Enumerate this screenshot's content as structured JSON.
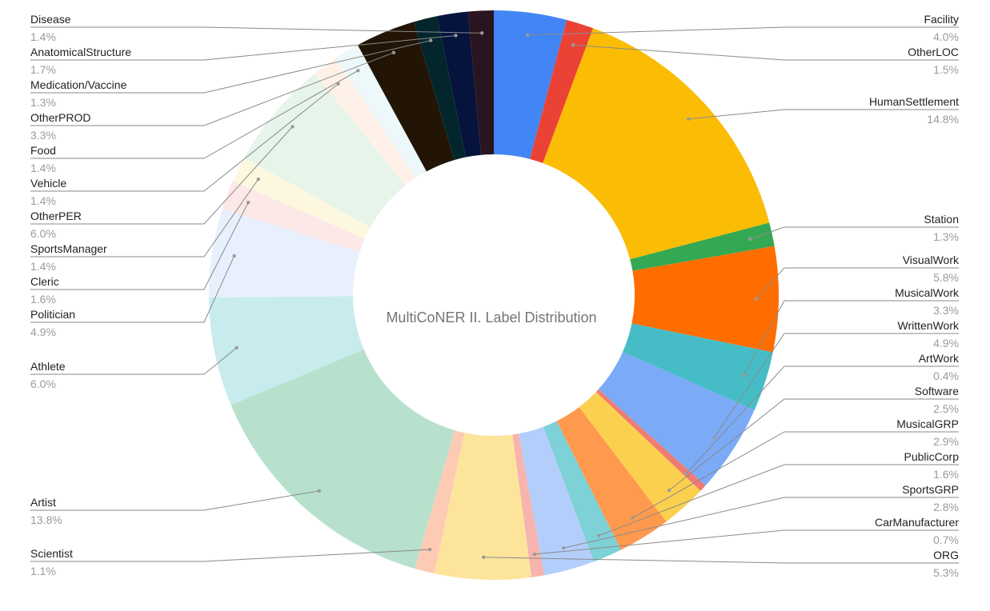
{
  "chart_data": {
    "type": "pie",
    "donut": true,
    "title": "MultiCoNER II. Label Distribution",
    "slices": [
      {
        "label": "Facility",
        "percent_label": "4.0%",
        "value": 4.0,
        "color": "#4285f4"
      },
      {
        "label": "OtherLOC",
        "percent_label": "1.5%",
        "value": 1.5,
        "color": "#ea4335"
      },
      {
        "label": "HumanSettlement",
        "percent_label": "14.8%",
        "value": 14.8,
        "color": "#fbbc04"
      },
      {
        "label": "Station",
        "percent_label": "1.3%",
        "value": 1.3,
        "color": "#34a853"
      },
      {
        "label": "VisualWork",
        "percent_label": "5.8%",
        "value": 5.8,
        "color": "#ff6d01"
      },
      {
        "label": "MusicalWork",
        "percent_label": "3.3%",
        "value": 3.3,
        "color": "#46bdc6"
      },
      {
        "label": "WrittenWork",
        "percent_label": "4.9%",
        "value": 4.9,
        "color": "#7baaf7"
      },
      {
        "label": "ArtWork",
        "percent_label": "0.4%",
        "value": 0.4,
        "color": "#f07b72"
      },
      {
        "label": "Software",
        "percent_label": "2.5%",
        "value": 2.5,
        "color": "#fcd04f"
      },
      {
        "label": "MusicalGRP",
        "percent_label": "2.9%",
        "value": 2.9,
        "color": "#ff994d"
      },
      {
        "label": "PublicCorp",
        "percent_label": "1.6%",
        "value": 1.6,
        "color": "#7ed1d7"
      },
      {
        "label": "SportsGRP",
        "percent_label": "2.8%",
        "value": 2.8,
        "color": "#b3cefb"
      },
      {
        "label": "CarManufacturer",
        "percent_label": "0.7%",
        "value": 0.7,
        "color": "#f7b4ae"
      },
      {
        "label": "ORG",
        "percent_label": "5.3%",
        "value": 5.3,
        "color": "#fde49b"
      },
      {
        "label": "Scientist",
        "percent_label": "1.1%",
        "value": 1.1,
        "color": "#fdcbb4"
      },
      {
        "label": "Artist",
        "percent_label": "13.8%",
        "value": 13.8,
        "color": "#b7e1cd"
      },
      {
        "label": "Athlete",
        "percent_label": "6.0%",
        "value": 6.0,
        "color": "#c8ebee"
      },
      {
        "label": "Politician",
        "percent_label": "4.9%",
        "value": 4.9,
        "color": "#e8f0fe"
      },
      {
        "label": "Cleric",
        "percent_label": "1.6%",
        "value": 1.6,
        "color": "#fce8e6"
      },
      {
        "label": "SportsManager",
        "percent_label": "1.4%",
        "value": 1.4,
        "color": "#fef7e0"
      },
      {
        "label": "OtherPER",
        "percent_label": "6.0%",
        "value": 6.0,
        "color": "#e6f4ea"
      },
      {
        "label": "Vehicle",
        "percent_label": "1.4%",
        "value": 1.4,
        "color": "#fff1e7"
      },
      {
        "label": "Food",
        "percent_label": "1.4%",
        "value": 1.4,
        "color": "#ecf8f9"
      },
      {
        "label": "OtherPROD",
        "percent_label": "3.3%",
        "value": 3.3,
        "color": "#221506"
      },
      {
        "label": "Medication/Vaccine",
        "percent_label": "1.3%",
        "value": 1.3,
        "color": "#02262b"
      },
      {
        "label": "AnatomicalStructure",
        "percent_label": "1.7%",
        "value": 1.7,
        "color": "#06133d"
      },
      {
        "label": "Disease",
        "percent_label": "1.4%",
        "value": 1.4,
        "color": "#2a1420"
      }
    ]
  }
}
